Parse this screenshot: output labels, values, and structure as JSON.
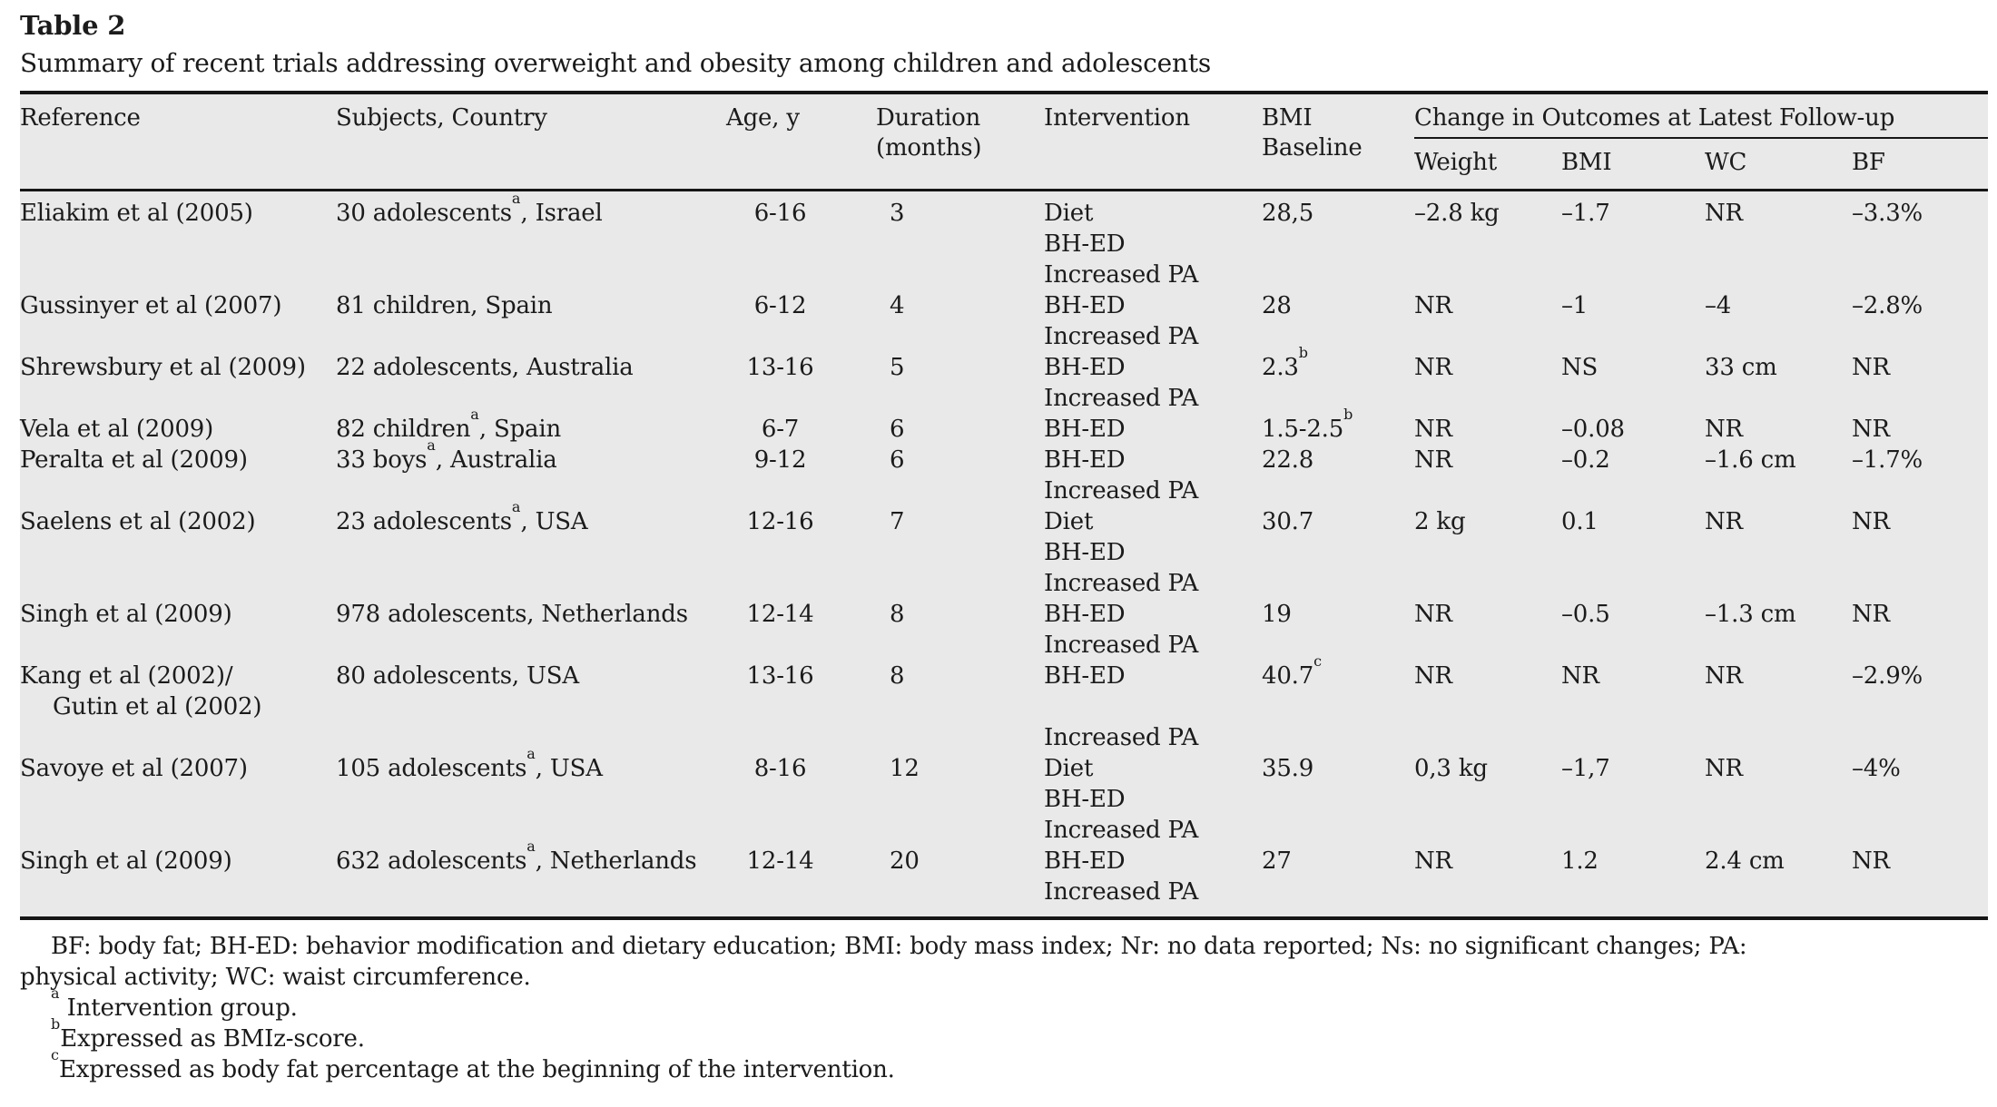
{
  "title": "Table 2",
  "caption": "Summary of recent trials addressing overweight and obesity among children and adolescents",
  "table": {
    "headers": {
      "reference": "Reference",
      "subjects": "Subjects, Country",
      "age": "Age, y",
      "duration_line1": "Duration",
      "duration_line2": "(months)",
      "intervention": "Intervention",
      "bmi_baseline_line1": "BMI",
      "bmi_baseline_line2": "Baseline"
    },
    "outcome_group_label": "Change in Outcomes at Latest Follow-up",
    "sub_headers": [
      "Weight",
      "BMI",
      "WC",
      "BF"
    ],
    "rows": [
      {
        "reference": [
          "Eliakim et al (2005)"
        ],
        "subjects": "30 adolescents^a^, Israel",
        "age": "6-16",
        "duration": "3",
        "intervention": [
          "Diet",
          "BH-ED",
          "Increased PA"
        ],
        "bmi_baseline": "28,5",
        "weight": "–2.8 kg",
        "bmi_change": "–1.7",
        "wc": "NR",
        "bf": "–3.3%"
      },
      {
        "reference": [
          "Gussinyer et al (2007)"
        ],
        "subjects": "81 children, Spain",
        "age": "6-12",
        "duration": "4",
        "intervention": [
          "BH-ED",
          "Increased PA"
        ],
        "bmi_baseline": "28",
        "weight": "NR",
        "bmi_change": "–1",
        "wc": "–4",
        "bf": "–2.8%"
      },
      {
        "reference": [
          "Shrewsbury et al (2009)"
        ],
        "subjects": "22 adolescents, Australia",
        "age": "13-16",
        "duration": "5",
        "intervention": [
          "BH-ED",
          "Increased PA"
        ],
        "bmi_baseline": "2.3^b^",
        "weight": "NR",
        "bmi_change": "NS",
        "wc": "33 cm",
        "bf": "NR"
      },
      {
        "reference": [
          "Vela et al (2009)"
        ],
        "subjects": "82 children^a^, Spain",
        "age": "6-7",
        "duration": "6",
        "intervention": [
          "BH-ED"
        ],
        "bmi_baseline": "1.5-2.5^b^",
        "weight": "NR",
        "bmi_change": "–0.08",
        "wc": "NR",
        "bf": "NR"
      },
      {
        "reference": [
          "Peralta et al (2009)"
        ],
        "subjects": "33 boys^a^, Australia",
        "age": "9-12",
        "duration": "6",
        "intervention": [
          "BH-ED",
          "Increased PA"
        ],
        "bmi_baseline": "22.8",
        "weight": "NR",
        "bmi_change": "–0.2",
        "wc": "–1.6 cm",
        "bf": "–1.7%"
      },
      {
        "reference": [
          "Saelens et al (2002)"
        ],
        "subjects": "23 adolescents^a^, USA",
        "age": "12-16",
        "duration": "7",
        "intervention": [
          "Diet",
          "BH-ED",
          "Increased PA"
        ],
        "bmi_baseline": "30.7",
        "weight": "2 kg",
        "bmi_change": "0.1",
        "wc": "NR",
        "bf": "NR"
      },
      {
        "reference": [
          "Singh et al (2009)"
        ],
        "subjects": "978 adolescents, Netherlands",
        "age": "12-14",
        "duration": "8",
        "intervention": [
          "BH-ED",
          "Increased PA"
        ],
        "bmi_baseline": "19",
        "weight": "NR",
        "bmi_change": "–0.5",
        "wc": "–1.3 cm",
        "bf": "NR"
      },
      {
        "reference": [
          "Kang et al (2002)/",
          "Gutin et al (2002)"
        ],
        "subjects": "80 adolescents, USA",
        "age": "13-16",
        "duration": "8",
        "intervention": [
          "BH-ED",
          "",
          "Increased PA"
        ],
        "bmi_baseline": "40.7^c^",
        "weight": "NR",
        "bmi_change": "NR",
        "wc": "NR",
        "bf": "–2.9%"
      },
      {
        "reference": [
          "Savoye et al (2007)"
        ],
        "subjects": "105 adolescents^a^, USA",
        "age": "8-16",
        "duration": "12",
        "intervention": [
          "Diet",
          "BH-ED",
          "Increased PA"
        ],
        "bmi_baseline": "35.9",
        "weight": "0,3 kg",
        "bmi_change": "–1,7",
        "wc": "NR",
        "bf": "–4%"
      },
      {
        "reference": [
          "Singh et al (2009)"
        ],
        "subjects": "632 adolescents^a^, Netherlands",
        "age": "12-14",
        "duration": "20",
        "intervention": [
          "BH-ED",
          "Increased PA"
        ],
        "bmi_baseline": "27",
        "weight": "NR",
        "bmi_change": "1.2",
        "wc": "2.4 cm",
        "bf": "NR"
      }
    ]
  },
  "footnotes": {
    "abbreviations": "BF: body fat; BH-ED: behavior modification and dietary education; BMI: body mass index; Nr: no data reported; Ns: no significant changes; PA: physical activity; WC: waist circumference.",
    "notes": [
      {
        "marker": "a",
        "text": " Intervention group."
      },
      {
        "marker": "b",
        "text": "Expressed as BMIz-score."
      },
      {
        "marker": "c",
        "text": "Expressed as body fat percentage at the beginning of the intervention."
      }
    ]
  }
}
